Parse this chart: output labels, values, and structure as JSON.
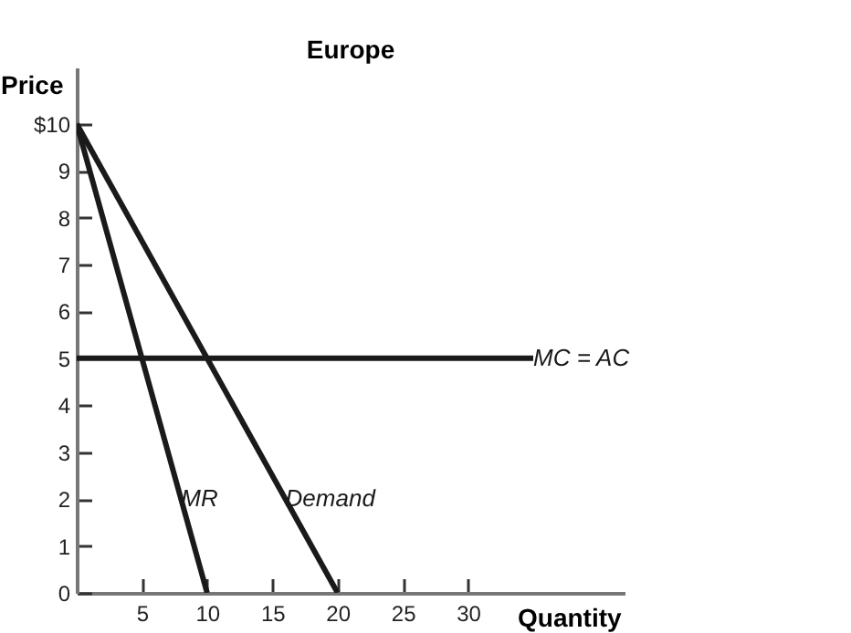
{
  "chart_data": {
    "type": "line",
    "title": "Europe",
    "xlabel": "Quantity",
    "ylabel": "Price",
    "xlim": [
      0,
      42
    ],
    "ylim": [
      0,
      11.2
    ],
    "xticks": [
      5,
      10,
      15,
      20,
      25,
      30
    ],
    "yticks": [
      0,
      1,
      2,
      3,
      4,
      5,
      6,
      7,
      8,
      9,
      {
        "value": 10,
        "label": "$10"
      }
    ],
    "series": [
      {
        "name": "MR",
        "color": "#1a1a1a",
        "x": [
          0,
          10
        ],
        "values": [
          10,
          0
        ]
      },
      {
        "name": "Demand",
        "color": "#1a1a1a",
        "x": [
          0,
          20
        ],
        "values": [
          10,
          0
        ]
      },
      {
        "name": "MC = AC",
        "color": "#1a1a1a",
        "x": [
          0,
          35
        ],
        "values": [
          5,
          5
        ]
      }
    ],
    "grid": false,
    "legend": false,
    "marker": "none",
    "line_style": "solid"
  }
}
